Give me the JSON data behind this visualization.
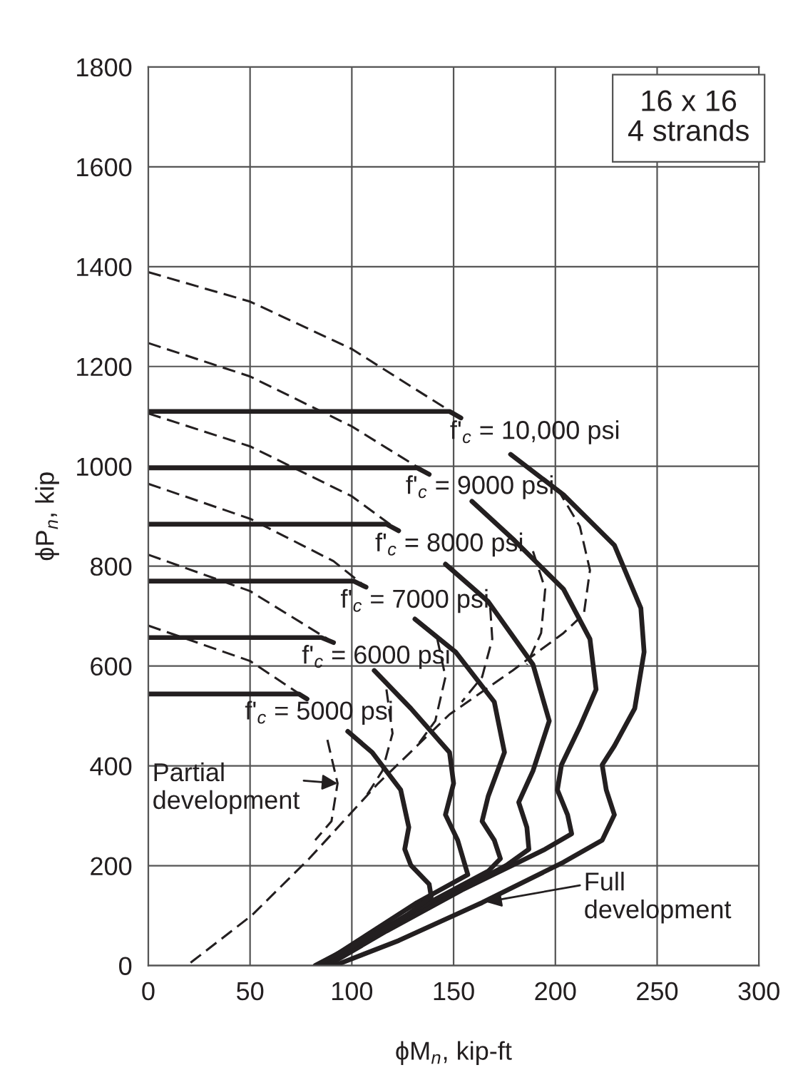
{
  "chart_data": {
    "type": "line",
    "xlabel": "ϕM$_{n}$, kip-ft",
    "ylabel": "ϕP$_{n}$, kip",
    "xlim": [
      0,
      300
    ],
    "ylim": [
      0,
      1800
    ],
    "xticks": [
      0,
      50,
      100,
      150,
      200,
      250,
      300
    ],
    "yticks": [
      0,
      200,
      400,
      600,
      800,
      1000,
      1200,
      1400,
      1600,
      1800
    ],
    "grid": true,
    "marker": "none",
    "series": [
      {
        "color": "#231f20",
        "line_style": "solid",
        "x": [
          0,
          148,
          153.6,
          null,
          178,
          204,
          229,
          242,
          243.6,
          239,
          229,
          223,
          225,
          229,
          223,
          204,
          164,
          123,
          91.5
        ],
        "values": [
          1110,
          1110,
          1097,
          null,
          1024,
          943,
          842,
          716,
          628,
          515,
          440,
          402,
          352,
          302,
          251,
          207,
          126,
          50,
          0
        ]
      },
      {
        "color": "#231f20",
        "line_style": "solid",
        "x": [
          0,
          132,
          138,
          null,
          159,
          179,
          204,
          217,
          220,
          212,
          203,
          201,
          206,
          208,
          195,
          154,
          117,
          88
        ],
        "values": [
          997,
          997,
          984,
          null,
          930,
          855,
          754,
          654,
          553,
          478,
          402,
          352,
          302,
          264,
          233,
          151,
          69,
          0
        ]
      },
      {
        "color": "#231f20",
        "line_style": "solid",
        "x": [
          0,
          117,
          123,
          null,
          146,
          167,
          189,
          197,
          189,
          182,
          186,
          187,
          176,
          142,
          110,
          87
        ],
        "values": [
          884,
          884,
          871,
          null,
          804,
          729,
          603,
          490,
          390,
          327,
          277,
          233,
          201,
          126,
          63,
          0
        ]
      },
      {
        "color": "#231f20",
        "line_style": "solid",
        "x": [
          0,
          101,
          107,
          null,
          131,
          151,
          170,
          175,
          167,
          164,
          170,
          173,
          167,
          132,
          85
        ],
        "values": [
          770,
          770,
          758,
          null,
          694,
          628,
          528,
          427,
          339,
          289,
          251,
          214,
          189,
          113,
          0
        ]
      },
      {
        "color": "#231f20",
        "line_style": "solid",
        "x": [
          0,
          85,
          91,
          null,
          111,
          129,
          148,
          150,
          146,
          152,
          157,
          132,
          84
        ],
        "values": [
          657,
          657,
          647,
          null,
          591,
          515,
          427,
          365,
          302,
          251,
          182,
          126,
          0
        ]
      },
      {
        "color": "#231f20",
        "line_style": "solid",
        "x": [
          0,
          74,
          78,
          null,
          98,
          110,
          124,
          128,
          126,
          129,
          138,
          139,
          123,
          82
        ],
        "values": [
          544,
          544,
          534,
          null,
          469,
          427,
          352,
          277,
          233,
          201,
          163,
          138,
          88,
          0
        ]
      },
      {
        "color": "#231f20",
        "line_style": "dashed",
        "x": [
          0,
          50,
          100,
          153.6,
          null,
          201,
          212,
          217,
          214,
          204,
          179,
          148,
          113,
          79,
          51,
          19
        ],
        "values": [
          1389,
          1330,
          1235,
          1097,
          null,
          955,
          880,
          792,
          704,
          666,
          591,
          503,
          365,
          214,
          101,
          0
        ]
      },
      {
        "color": "#231f20",
        "line_style": "dashed",
        "x": [
          0,
          50,
          100,
          138,
          null,
          189,
          195,
          193,
          186
        ],
        "values": [
          1247,
          1180,
          1080,
          984,
          null,
          830,
          754,
          666,
          603
        ]
      },
      {
        "color": "#231f20",
        "line_style": "dashed",
        "x": [
          0,
          50,
          100,
          123,
          null,
          168,
          169,
          164,
          154
        ],
        "values": [
          1106,
          1040,
          940,
          871,
          null,
          717,
          654,
          578,
          528
        ]
      },
      {
        "color": "#231f20",
        "line_style": "dashed",
        "x": [
          0,
          50,
          91,
          107,
          null,
          142,
          146,
          141,
          132
        ],
        "values": [
          965,
          895,
          810,
          758,
          null,
          654,
          578,
          490,
          440
        ]
      },
      {
        "color": "#231f20",
        "line_style": "dashed",
        "x": [
          0,
          50,
          91,
          null,
          117,
          120,
          115,
          107
        ],
        "values": [
          823,
          750,
          647,
          null,
          553,
          465,
          390,
          339
        ]
      },
      {
        "color": "#231f20",
        "line_style": "dashed",
        "x": [
          0,
          50,
          78,
          null,
          88,
          93,
          90,
          82
        ],
        "values": [
          681,
          610,
          534,
          null,
          452,
          365,
          289,
          251
        ]
      }
    ],
    "annotations": [
      "f'$_{c}$ = 10,000 psi",
      "f'$_{c}$ = 9000 psi",
      "f'$_{c}$ = 8000 psi",
      "f'$_{c}$ = 7000 psi",
      "f'$_{c}$ = 6000 psi",
      "f'$_{c}$ = 5000 psi",
      {
        "text": "Partial\ndevelopment",
        "x": 93,
        "y": 365
      },
      {
        "text": "Full\ndevelopment",
        "x": 164,
        "y": 126
      },
      "16 x 16\n4 strands"
    ]
  }
}
